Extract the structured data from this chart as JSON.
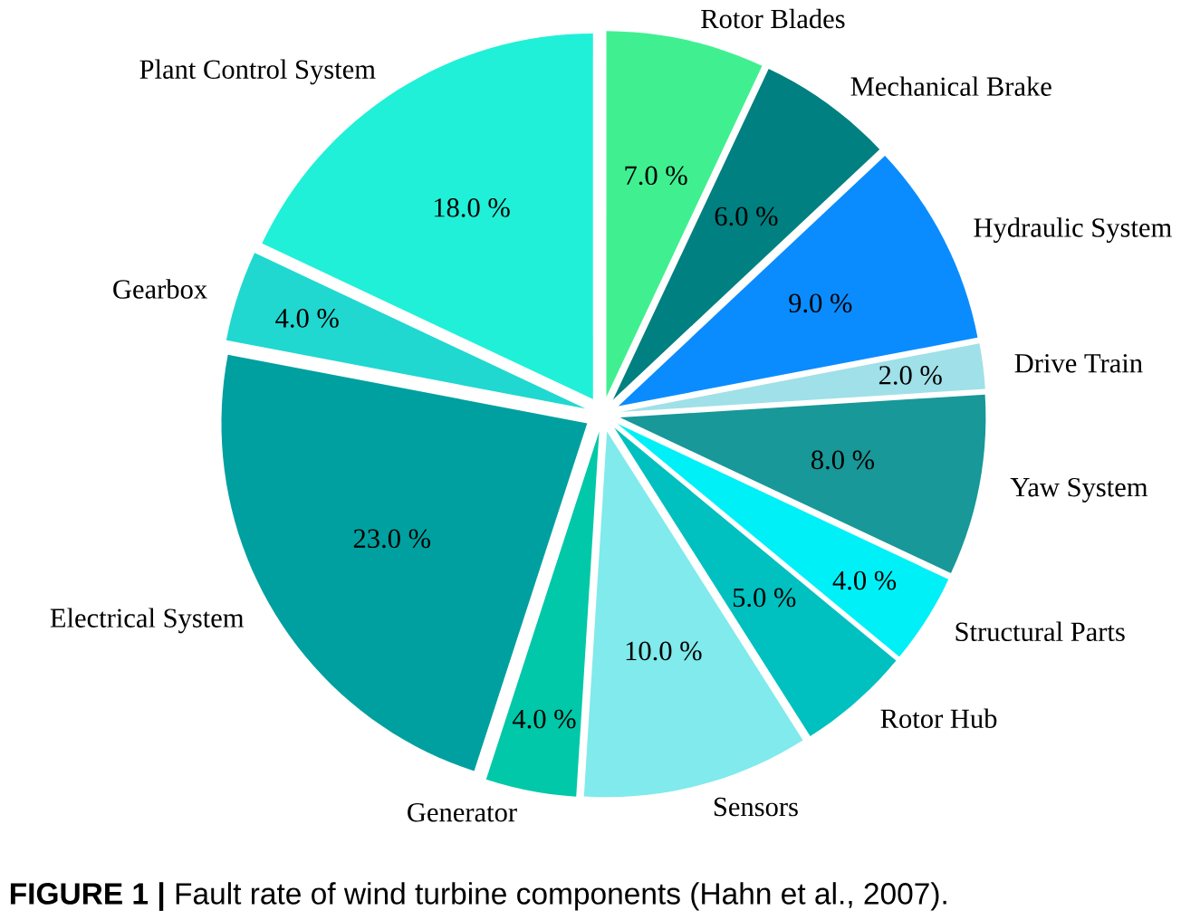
{
  "chart_data": {
    "type": "pie",
    "categories": [
      "Rotor Blades",
      "Mechanical Brake",
      "Hydraulic System",
      "Drive Train",
      "Yaw System",
      "Structural Parts",
      "Rotor Hub",
      "Sensors",
      "Generator",
      "Electrical System",
      "Gearbox",
      "Plant Control System"
    ],
    "values": [
      7,
      6,
      9,
      2,
      8,
      4,
      5,
      10,
      4,
      23,
      4,
      18
    ],
    "value_labels": [
      "7.0 %",
      "6.0 %",
      "9.0 %",
      "2.0 %",
      "8.0 %",
      "4.0 %",
      "5.0 %",
      "10.0 %",
      "4.0 %",
      "23.0 %",
      "4.0 %",
      "18.0 %"
    ],
    "colors": [
      "#40f090",
      "#008080",
      "#0a8cff",
      "#a0e0e8",
      "#189898",
      "#00f0f8",
      "#00c0c0",
      "#80eaec",
      "#00c8a8",
      "#00a0a0",
      "#20d8d0",
      "#20f0d8"
    ],
    "annotations": [
      "**FIGURE 1 |** Fault rate of wind turbine components (Hahn et al., 2007)."
    ]
  }
}
